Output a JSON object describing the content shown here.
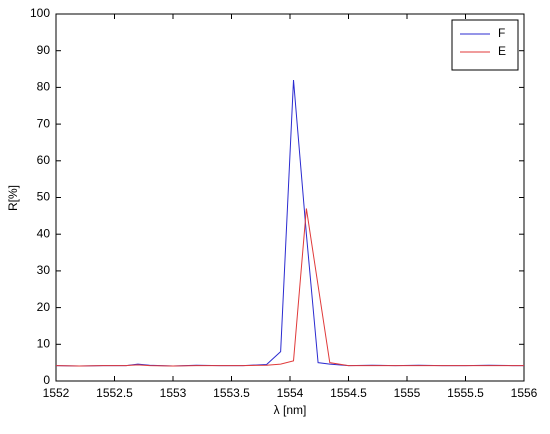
{
  "chart_data": {
    "type": "line",
    "xlabel": "λ [nm]",
    "ylabel": "R[%]",
    "x": [
      1552,
      1552.2,
      1552.4,
      1552.6,
      1552.7,
      1552.8,
      1553,
      1553.2,
      1553.4,
      1553.6,
      1553.8,
      1553.92,
      1554.03,
      1554.14,
      1554.24,
      1554.34,
      1554.5,
      1554.7,
      1554.9,
      1555.1,
      1555.3,
      1555.5,
      1555.7,
      1555.9,
      1556
    ],
    "series": [
      {
        "name": "F",
        "color": "#2b2bd0",
        "values": [
          4.2,
          4.1,
          4.2,
          4.2,
          4.6,
          4.3,
          4.1,
          4.3,
          4.2,
          4.2,
          4.5,
          8,
          82,
          40,
          5,
          4.6,
          4.2,
          4.3,
          4.2,
          4.3,
          4.2,
          4.2,
          4.3,
          4.2,
          4.2
        ]
      },
      {
        "name": "E",
        "color": "#e03a3a",
        "values": [
          4.2,
          4.1,
          4.2,
          4.2,
          4.4,
          4.2,
          4.1,
          4.2,
          4.2,
          4.2,
          4.3,
          4.6,
          5.5,
          47,
          26,
          5,
          4.2,
          4.2,
          4.2,
          4.2,
          4.2,
          4.2,
          4.2,
          4.2,
          4.2
        ]
      }
    ],
    "xlim": [
      1552,
      1556
    ],
    "xticks": [
      1552,
      1552.5,
      1553,
      1553.5,
      1554,
      1554.5,
      1555,
      1555.5,
      1556
    ],
    "ylim": [
      0,
      100
    ],
    "yticks": [
      0,
      10,
      20,
      30,
      40,
      50,
      60,
      70,
      80,
      90,
      100
    ],
    "grid": false,
    "legend": "upper right"
  }
}
